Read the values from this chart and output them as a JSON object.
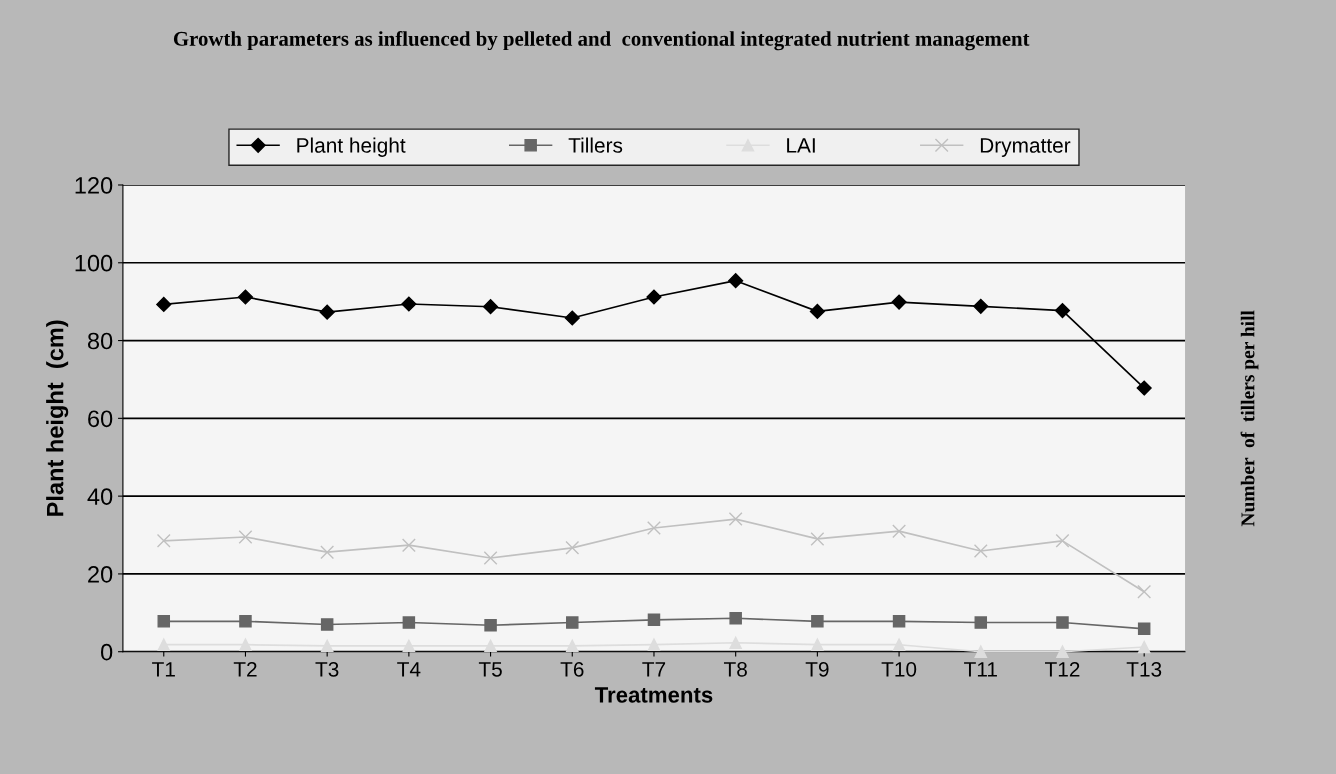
{
  "chart_data": {
    "type": "line",
    "title": "Growth parameters as influenced by pelleted and  conventional integrated nutrient management",
    "xlabel": "Treatments",
    "ylabel": "Plant height  (cm)",
    "y2label": "Number  of  tillers per hill",
    "categories": [
      "T1",
      "T2",
      "T3",
      "T4",
      "T5",
      "T6",
      "T7",
      "T8",
      "T9",
      "T10",
      "T11",
      "T12",
      "T13"
    ],
    "series": [
      {
        "name": "Plant height",
        "color": "#000000",
        "marker": "diamond",
        "values": [
          89.3,
          91.2,
          87.3,
          89.4,
          88.7,
          85.8,
          91.2,
          95.4,
          87.5,
          89.9,
          88.8,
          87.7,
          67.8
        ]
      },
      {
        "name": "Tillers",
        "color": "#666666",
        "marker": "square",
        "values": [
          7.8,
          7.8,
          7.0,
          7.5,
          6.8,
          7.5,
          8.2,
          8.6,
          7.8,
          7.8,
          7.5,
          7.5,
          5.9
        ]
      },
      {
        "name": "LAI",
        "color": "#dddddd",
        "marker": "triangle",
        "values": [
          1.8,
          1.8,
          1.5,
          1.5,
          1.5,
          1.5,
          1.8,
          2.3,
          1.8,
          1.8,
          0,
          0,
          1.2
        ]
      },
      {
        "name": "Drymatter",
        "color": "#c0c0c0",
        "marker": "cross",
        "values": [
          28.5,
          29.5,
          25.6,
          27.4,
          24.1,
          26.7,
          31.8,
          34.1,
          29.0,
          31.0,
          25.9,
          28.5,
          15.4
        ]
      }
    ],
    "ylim": [
      0,
      120
    ],
    "yticks": [
      0,
      20,
      40,
      60,
      80,
      100,
      120
    ],
    "grid": "y",
    "legend": "top"
  }
}
